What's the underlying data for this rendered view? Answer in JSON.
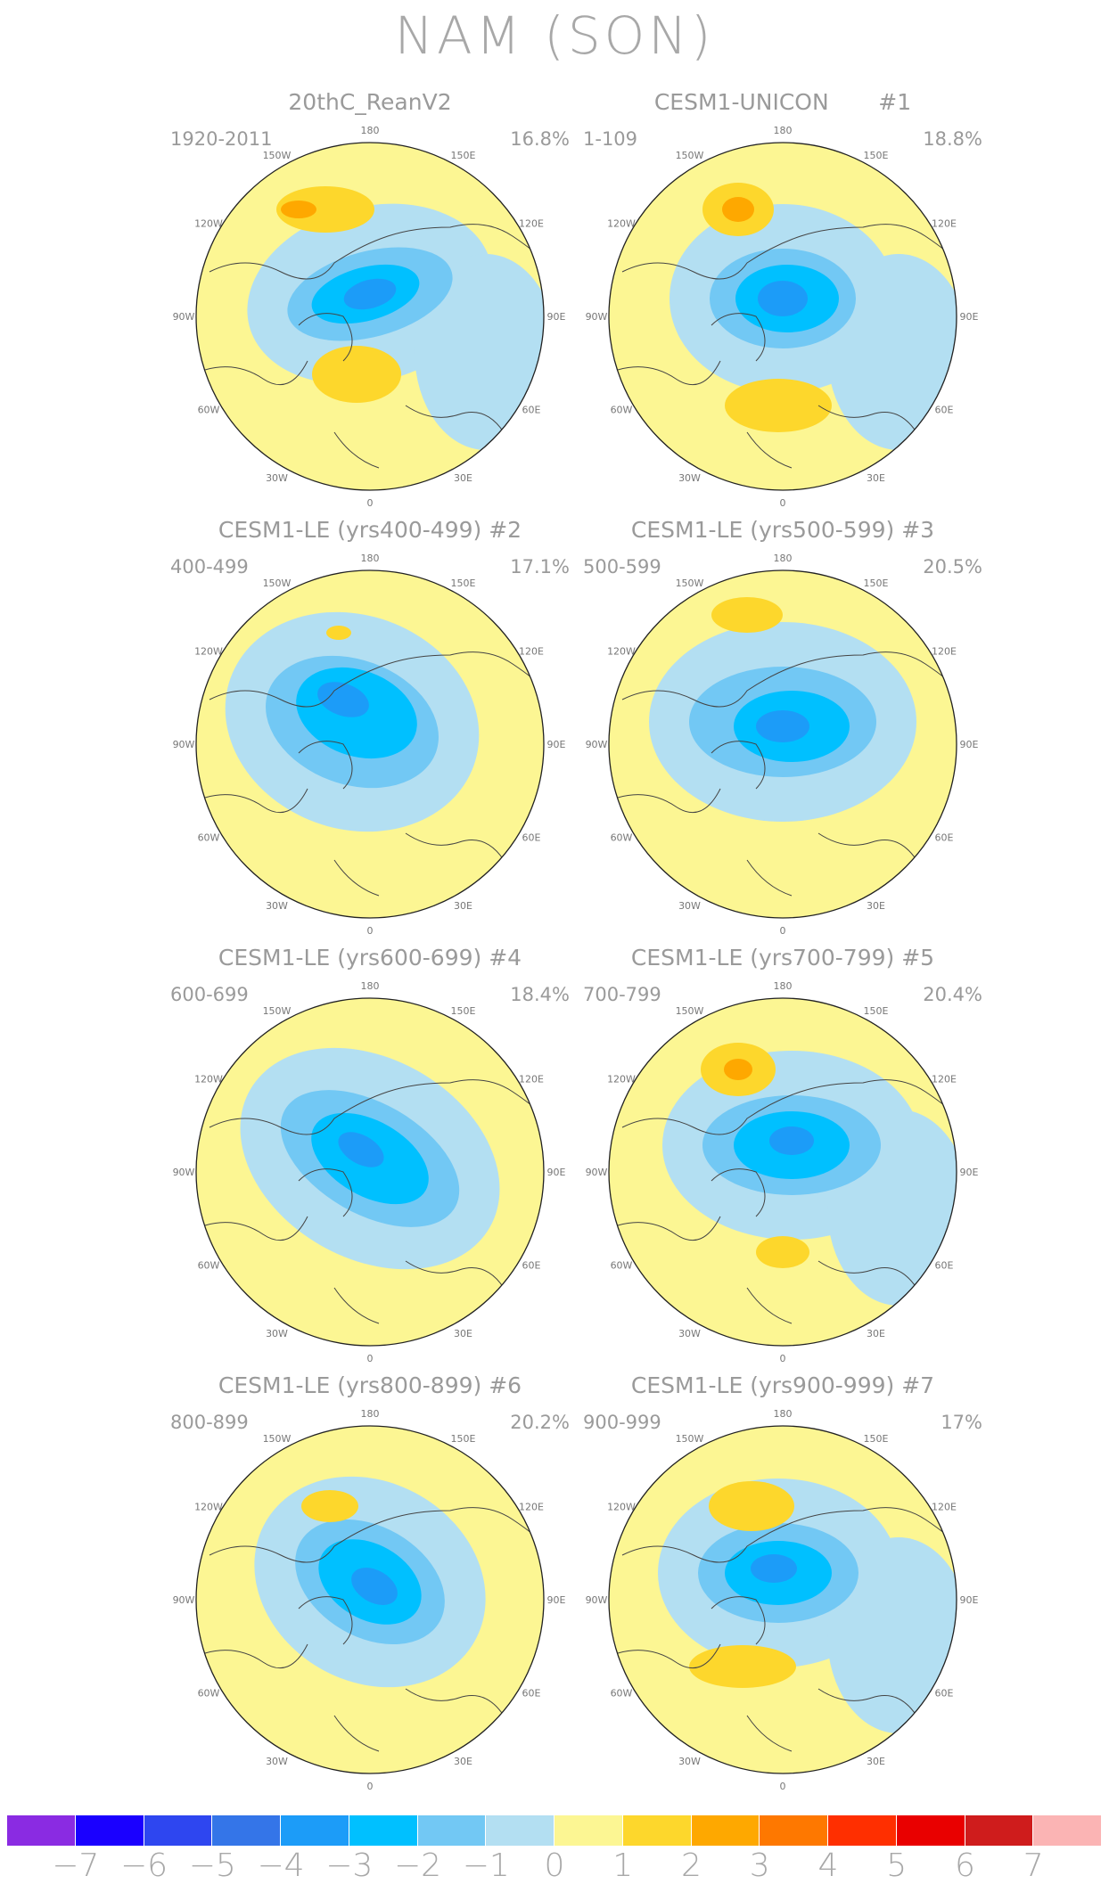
{
  "title": "NAM (SON)",
  "map": {
    "longitude_labels": [
      "180",
      "150E",
      "120E",
      "90E",
      "60E",
      "30E",
      "0",
      "30W",
      "60W",
      "90W",
      "120W",
      "150W"
    ],
    "panels": [
      {
        "title": "20thC_ReanV2",
        "years": "1920-2011",
        "variance": "16.8%"
      },
      {
        "title": "CESM1-UNICON       #1",
        "years": "1-109",
        "variance": "18.8%"
      },
      {
        "title": "CESM1-LE (yrs400-499) #2",
        "years": "400-499",
        "variance": "17.1%"
      },
      {
        "title": "CESM1-LE (yrs500-599) #3",
        "years": "500-599",
        "variance": "20.5%"
      },
      {
        "title": "CESM1-LE (yrs600-699) #4",
        "years": "600-699",
        "variance": "18.4%"
      },
      {
        "title": "CESM1-LE (yrs700-799) #5",
        "years": "700-799",
        "variance": "20.4%"
      },
      {
        "title": "CESM1-LE (yrs800-899) #6",
        "years": "800-899",
        "variance": "20.2%"
      },
      {
        "title": "CESM1-LE (yrs900-999) #7",
        "years": "900-999",
        "variance": "17%"
      }
    ]
  },
  "colorbar": {
    "labels": [
      "−7",
      "−6",
      "−5",
      "−4",
      "−3",
      "−2",
      "−1",
      "0",
      "1",
      "2",
      "3",
      "4",
      "5",
      "6",
      "7"
    ],
    "colors": [
      "#8a2be2",
      "#1a00ff",
      "#2e46f0",
      "#3475e8",
      "#1c9cf8",
      "#00c0ff",
      "#72c8f4",
      "#b3dff2",
      "#fcf693",
      "#fdd72c",
      "#fea800",
      "#fe7800",
      "#ff2f00",
      "#e90000",
      "#cf1c1c",
      "#fbb4b4"
    ]
  }
}
